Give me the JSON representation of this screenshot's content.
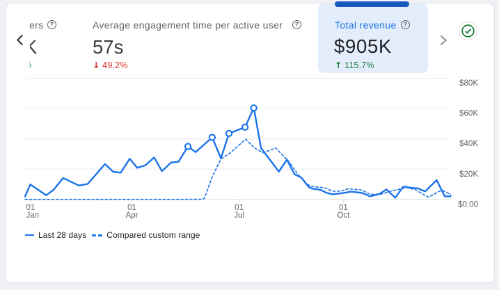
{
  "page": {
    "background": "#eff1f4",
    "card_background": "#ffffff"
  },
  "scorecards": {
    "nav": {
      "left_chevron": "chevron-left",
      "right_chevron": "chevron-right"
    },
    "items": [
      {
        "id": "partial-left-card",
        "label_fragment": "ers",
        "value_fragment": "K",
        "delta_fragment": "%",
        "delta_color": "#188038",
        "help_icon": "?"
      },
      {
        "id": "avg-engagement-time",
        "label": "Average engagement time per active user",
        "value": "57s",
        "delta_arrow": "↓",
        "delta": "49.2%",
        "delta_color": "#d93025",
        "help_icon": "?",
        "selected": false
      },
      {
        "id": "total-revenue",
        "label": "Total revenue",
        "value": "$905K",
        "delta_arrow": "↑",
        "delta": "115.7%",
        "delta_color": "#188038",
        "help_icon": "?",
        "selected": true,
        "selected_bg": "#e4edfb",
        "indicator_color": "#185abc",
        "label_color": "#1a73e8"
      }
    ]
  },
  "status_badge": {
    "icon": "check-circle",
    "color": "#188038"
  },
  "chart_data": {
    "type": "line",
    "title": "",
    "xlabel": "",
    "ylabel": "",
    "line_color": "#1a73e8",
    "grid": true,
    "legend_position": "bottom-left",
    "y_axis": {
      "labels": [
        "$80K",
        "$60K",
        "$40K",
        "$20K",
        "$0.00"
      ],
      "values": [
        80,
        60,
        40,
        20,
        0
      ],
      "max": 80,
      "min": 0
    },
    "x_axis": {
      "ticks": [
        {
          "line1": "01",
          "line2": "Jan",
          "frac": 0.014
        },
        {
          "line1": "01",
          "line2": "Apr",
          "frac": 0.251
        },
        {
          "line1": "01",
          "line2": "Jul",
          "frac": 0.503
        },
        {
          "line1": "01",
          "line2": "Oct",
          "frac": 0.748
        }
      ]
    },
    "series": [
      {
        "name": "Last 28 days",
        "style": "solid",
        "points": [
          [
            0.0,
            2.0
          ],
          [
            0.0124,
            9.9
          ],
          [
            0.0496,
            2.8
          ],
          [
            0.0672,
            6.4
          ],
          [
            0.0895,
            14.2
          ],
          [
            0.1266,
            9.2
          ],
          [
            0.1473,
            10.3
          ],
          [
            0.1877,
            23.4
          ],
          [
            0.207,
            18.3
          ],
          [
            0.2247,
            17.7
          ],
          [
            0.246,
            26.9
          ],
          [
            0.2636,
            20.9
          ],
          [
            0.2829,
            22.6
          ],
          [
            0.3034,
            27.8
          ],
          [
            0.3217,
            18.7
          ],
          [
            0.3429,
            24.4
          ],
          [
            0.3606,
            24.9
          ],
          [
            0.3827,
            35.0
          ],
          [
            0.4008,
            31.3
          ],
          [
            0.4397,
            41.0
          ],
          [
            0.4603,
            27.2
          ],
          [
            0.4791,
            43.6
          ],
          [
            0.5169,
            47.7
          ],
          [
            0.5375,
            60.4
          ],
          [
            0.5545,
            33.9
          ],
          [
            0.5964,
            18.4
          ],
          [
            0.6152,
            26.3
          ],
          [
            0.6332,
            16.7
          ],
          [
            0.6496,
            14.4
          ],
          [
            0.667,
            8.1
          ],
          [
            0.6756,
            7.1
          ],
          [
            0.6859,
            6.8
          ],
          [
            0.6966,
            6.1
          ],
          [
            0.7084,
            4.4
          ],
          [
            0.7225,
            3.5
          ],
          [
            0.7367,
            3.9
          ],
          [
            0.7508,
            4.4
          ],
          [
            0.7648,
            5.2
          ],
          [
            0.7791,
            4.8
          ],
          [
            0.7931,
            4.2
          ],
          [
            0.8106,
            2.1
          ],
          [
            0.833,
            3.7
          ],
          [
            0.8491,
            6.6
          ],
          [
            0.8698,
            1.2
          ],
          [
            0.889,
            8.6
          ],
          [
            0.9065,
            7.8
          ],
          [
            0.9241,
            7.3
          ],
          [
            0.94,
            5.3
          ],
          [
            0.9671,
            12.8
          ],
          [
            0.9863,
            2.1
          ],
          [
            1.0,
            2.1
          ]
        ],
        "markers": [
          [
            0.3827,
            35.0
          ],
          [
            0.4397,
            41.0
          ],
          [
            0.4791,
            43.6
          ],
          [
            0.5169,
            47.7
          ],
          [
            0.5375,
            60.4
          ]
        ]
      },
      {
        "name": "Compared custom range",
        "style": "dashed",
        "points": [
          [
            0.0,
            0.1
          ],
          [
            0.1864,
            0.1
          ],
          [
            0.35,
            0.1
          ],
          [
            0.4154,
            0.2
          ],
          [
            0.4216,
            0.8
          ],
          [
            0.4381,
            13.9
          ],
          [
            0.4599,
            26.6
          ],
          [
            0.4813,
            30.6
          ],
          [
            0.4978,
            34.6
          ],
          [
            0.5184,
            39.8
          ],
          [
            0.5388,
            34.1
          ],
          [
            0.5594,
            30.8
          ],
          [
            0.5887,
            34.0
          ],
          [
            0.619,
            25.3
          ],
          [
            0.6378,
            18.0
          ],
          [
            0.6567,
            11.4
          ],
          [
            0.6708,
            8.8
          ],
          [
            0.6896,
            8.1
          ],
          [
            0.7037,
            7.8
          ],
          [
            0.7225,
            5.5
          ],
          [
            0.7415,
            5.5
          ],
          [
            0.7603,
            7.1
          ],
          [
            0.7915,
            6.2
          ],
          [
            0.8106,
            3.5
          ],
          [
            0.833,
            3.3
          ],
          [
            0.8649,
            5.9
          ],
          [
            0.8968,
            7.8
          ],
          [
            0.9161,
            6.6
          ],
          [
            0.948,
            1.5
          ],
          [
            0.9735,
            5.5
          ],
          [
            0.9815,
            5.9
          ],
          [
            1.0,
            3.3
          ]
        ],
        "markers": []
      }
    ]
  },
  "legend": {
    "items": [
      {
        "label": "Last 28 days",
        "style": "solid"
      },
      {
        "label": "Compared custom range",
        "style": "dashed"
      }
    ]
  }
}
